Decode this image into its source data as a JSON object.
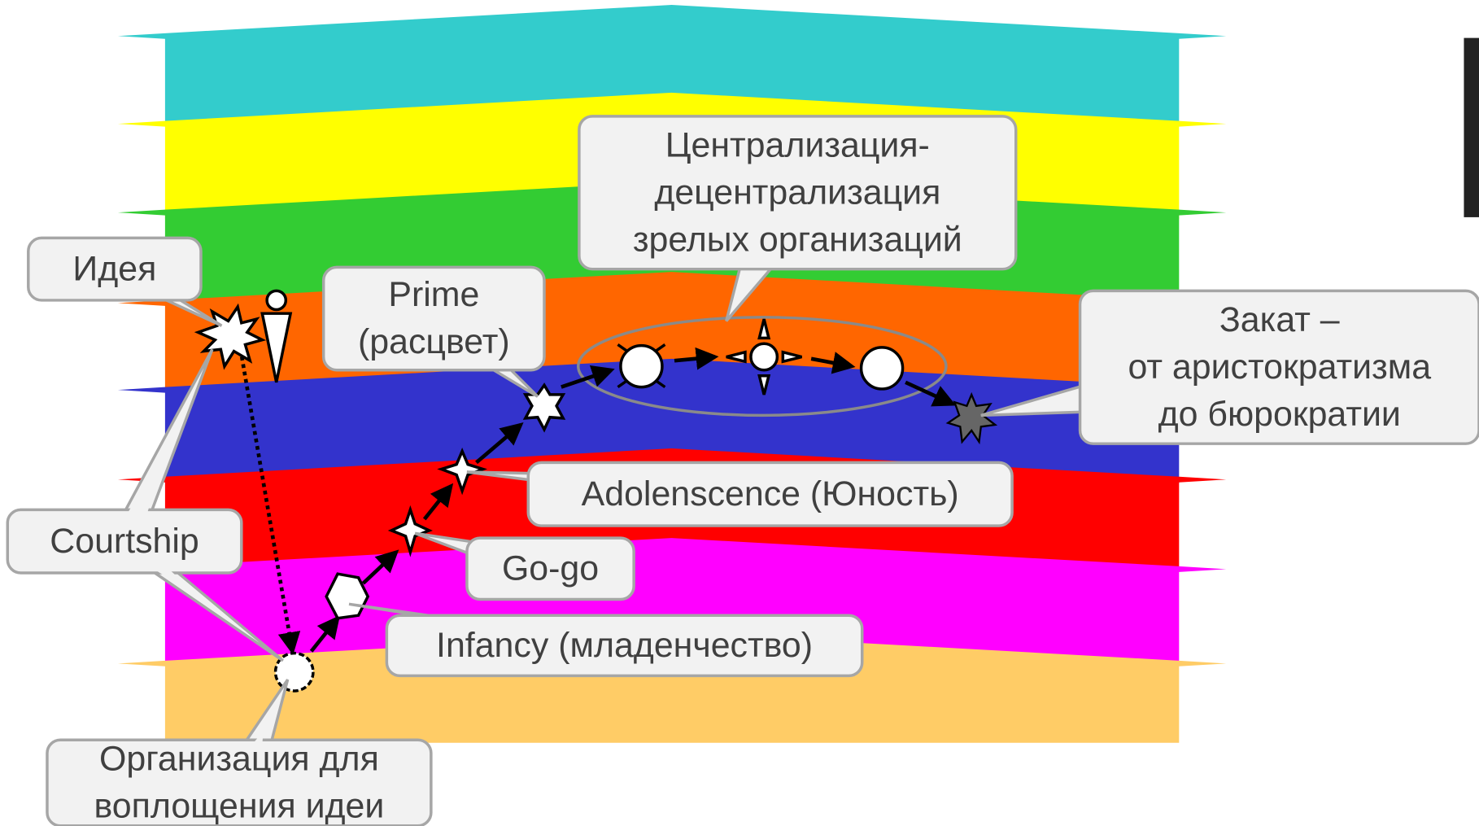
{
  "callouts": [
    {
      "lines": [
        "Идея"
      ]
    },
    {
      "lines": [
        "Prime",
        "(расцвет)"
      ]
    },
    {
      "lines": [
        "Централизация-",
        "децентрализация",
        "зрелых организаций"
      ]
    },
    {
      "lines": [
        "Закат –",
        "от аристократизма",
        "до бюрократии"
      ]
    },
    {
      "lines": [
        "Adolenscence (Юность)"
      ]
    },
    {
      "lines": [
        "Go-go"
      ]
    },
    {
      "lines": [
        "Infancy (младенчество)"
      ]
    },
    {
      "lines": [
        "Courtship"
      ]
    },
    {
      "lines": [
        "Организация для",
        "воплощения идеи"
      ]
    }
  ]
}
